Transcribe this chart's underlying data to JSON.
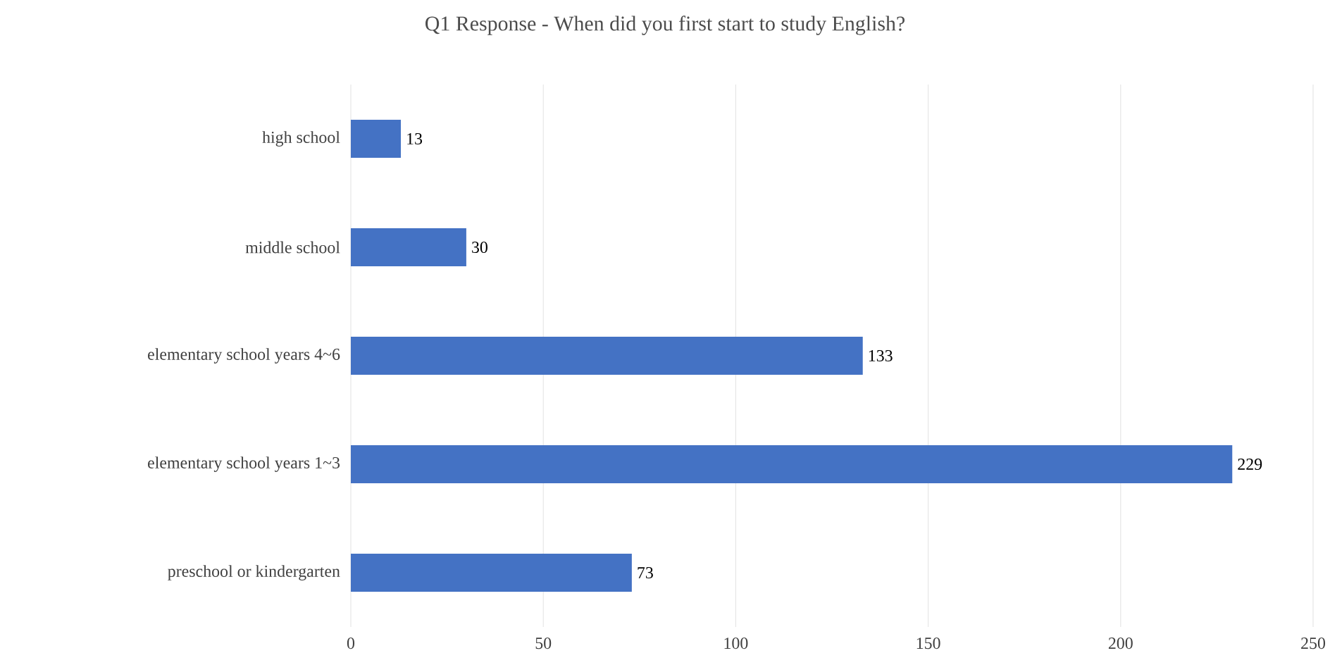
{
  "chart_data": {
    "type": "bar",
    "orientation": "horizontal",
    "title": "Q1 Response - When did you first start to study English?",
    "categories": [
      "high school",
      "middle school",
      "elementary school years 4~6",
      "elementary school years 1~3",
      "preschool or kindergarten"
    ],
    "values": [
      13,
      30,
      133,
      229,
      73
    ],
    "color": "#4472c4",
    "xlim": [
      0,
      250
    ],
    "xticks": [
      0,
      50,
      100,
      150,
      200,
      250
    ],
    "grid": "x",
    "data_labels": true
  }
}
